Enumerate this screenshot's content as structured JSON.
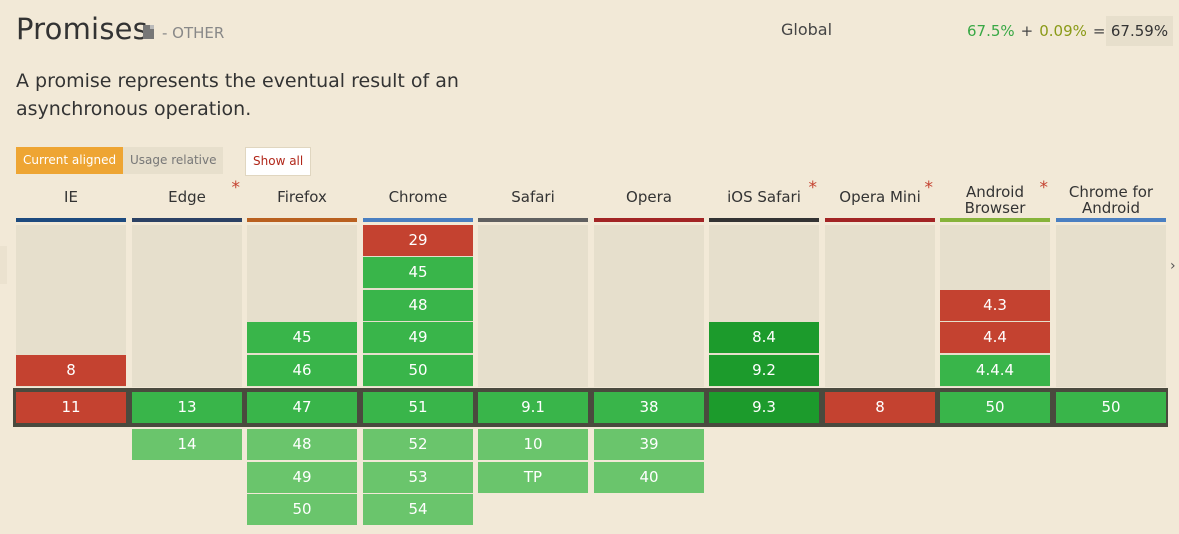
{
  "header": {
    "title": "Promises",
    "category": "- OTHER",
    "scope": "Global",
    "usage_supported": "67.5%",
    "plus": "+",
    "usage_partial": "0.09%",
    "equals": "=",
    "usage_total": "67.59%"
  },
  "description": "A promise represents the eventual result of an asynchronous operation.",
  "controls": {
    "current_aligned": "Current aligned",
    "usage_relative": "Usage relative",
    "show_all": "Show all"
  },
  "colors": {
    "unsupported": "#c44230",
    "supported": "#39b54a",
    "supported_highlight": "#1c9b2c",
    "future": "#6ac56c"
  },
  "browsers": [
    {
      "name": "IE",
      "star": "",
      "color": "#1d4a7e",
      "past": [
        {
          "v": "8",
          "s": "n"
        }
      ],
      "current": {
        "v": "11",
        "s": "n"
      },
      "future": []
    },
    {
      "name": "Edge",
      "star": "*",
      "color": "#2b4164",
      "past": [],
      "current": {
        "v": "13",
        "s": "y"
      },
      "future": [
        {
          "v": "14",
          "s": "f"
        }
      ]
    },
    {
      "name": "Firefox",
      "star": "",
      "color": "#b9601f",
      "past": [
        {
          "v": "45",
          "s": "y"
        },
        {
          "v": "46",
          "s": "y"
        }
      ],
      "current": {
        "v": "47",
        "s": "y"
      },
      "future": [
        {
          "v": "48",
          "s": "f"
        },
        {
          "v": "49",
          "s": "f"
        },
        {
          "v": "50",
          "s": "f"
        }
      ]
    },
    {
      "name": "Chrome",
      "star": "",
      "color": "#4a7fc1",
      "past": [
        {
          "v": "29",
          "s": "n"
        },
        {
          "v": "45",
          "s": "y"
        },
        {
          "v": "48",
          "s": "y"
        },
        {
          "v": "49",
          "s": "y"
        },
        {
          "v": "50",
          "s": "y"
        }
      ],
      "current": {
        "v": "51",
        "s": "y"
      },
      "future": [
        {
          "v": "52",
          "s": "f"
        },
        {
          "v": "53",
          "s": "f"
        },
        {
          "v": "54",
          "s": "f"
        }
      ]
    },
    {
      "name": "Safari",
      "star": "",
      "color": "#606060",
      "past": [],
      "current": {
        "v": "9.1",
        "s": "y"
      },
      "future": [
        {
          "v": "10",
          "s": "f"
        },
        {
          "v": "TP",
          "s": "f"
        }
      ]
    },
    {
      "name": "Opera",
      "star": "",
      "color": "#a22424",
      "past": [],
      "current": {
        "v": "38",
        "s": "y"
      },
      "future": [
        {
          "v": "39",
          "s": "f"
        },
        {
          "v": "40",
          "s": "f"
        }
      ]
    },
    {
      "name": "iOS Safari",
      "star": "*",
      "color": "#333333",
      "past": [
        {
          "v": "8.4",
          "s": "d"
        },
        {
          "v": "9.2",
          "s": "d"
        }
      ],
      "current": {
        "v": "9.3",
        "s": "d"
      },
      "future": []
    },
    {
      "name": "Opera Mini",
      "star": "*",
      "color": "#a22424",
      "past": [],
      "current": {
        "v": "8",
        "s": "n"
      },
      "future": []
    },
    {
      "name": "Android Browser",
      "star": "*",
      "color": "#86b33a",
      "past": [
        {
          "v": "4.3",
          "s": "n"
        },
        {
          "v": "4.4",
          "s": "n"
        },
        {
          "v": "4.4.4",
          "s": "y"
        }
      ],
      "current": {
        "v": "50",
        "s": "y"
      },
      "future": []
    },
    {
      "name": "Chrome for Android",
      "star": "",
      "color": "#4a7fc1",
      "past": [],
      "current": {
        "v": "50",
        "s": "y"
      },
      "future": []
    }
  ]
}
